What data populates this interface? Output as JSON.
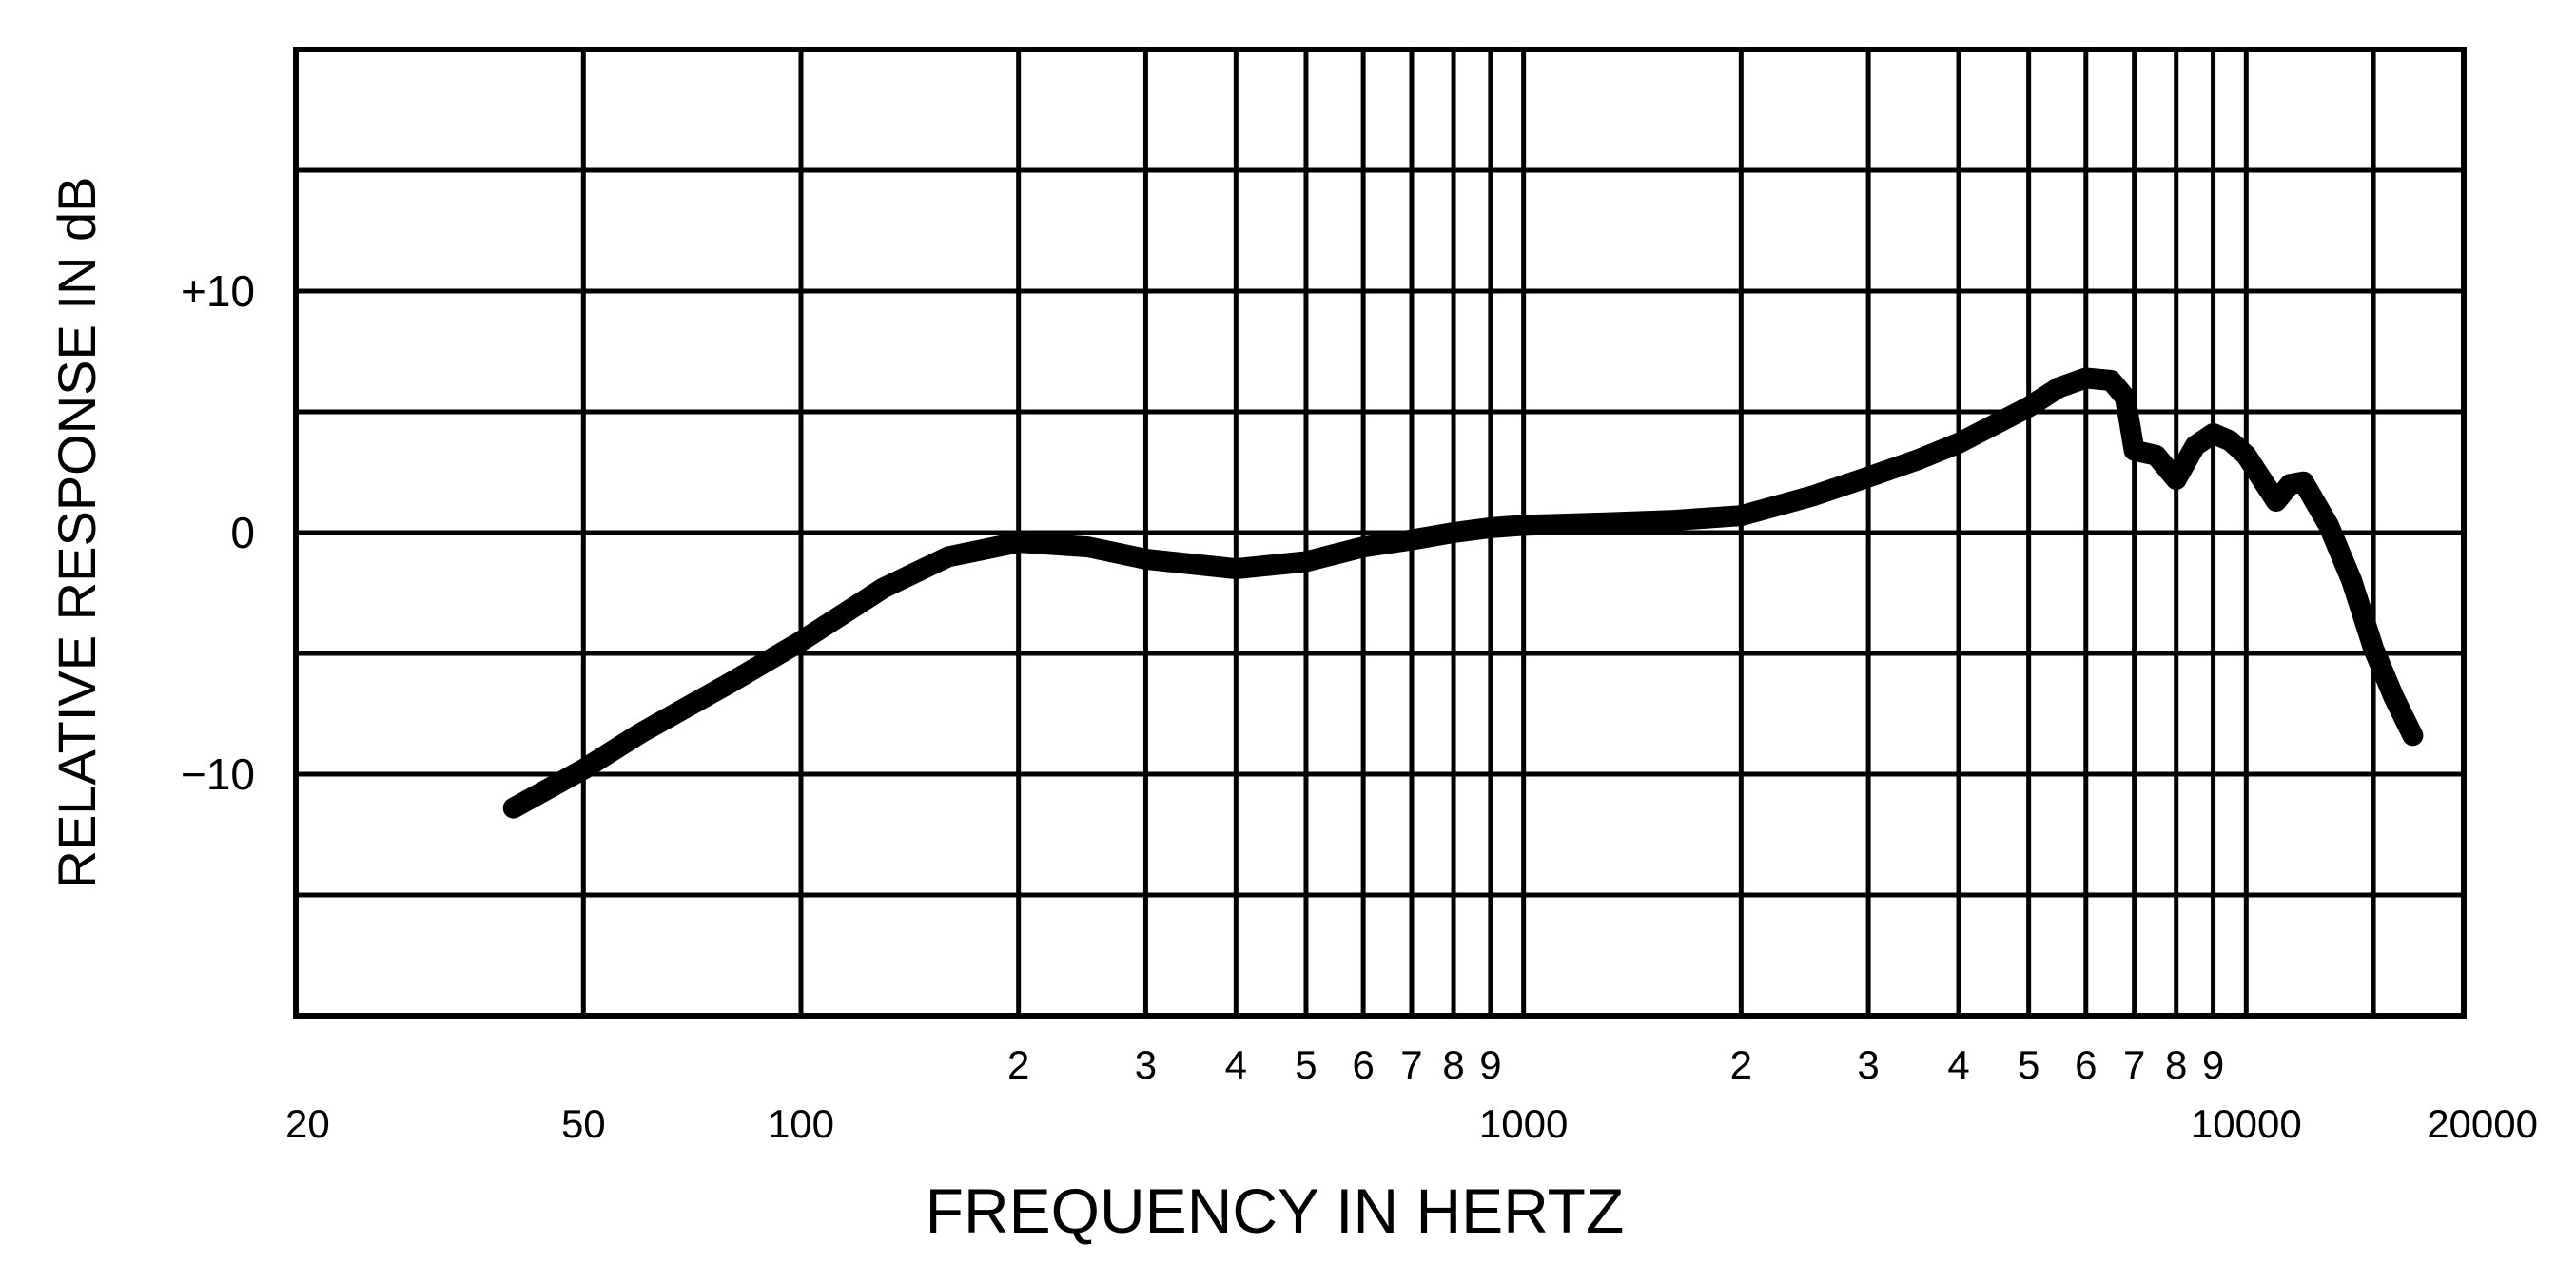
{
  "chart_data": {
    "type": "line",
    "title": "",
    "xlabel": "FREQUENCY IN HERTZ",
    "ylabel": "RELATIVE RESPONSE IN dB",
    "x_scale": "log",
    "xlim": [
      20,
      20000
    ],
    "ylim": [
      -20,
      20
    ],
    "grid": true,
    "x_major_tick_labels": [
      {
        "value": 20,
        "label": "20"
      },
      {
        "value": 50,
        "label": "50"
      },
      {
        "value": 100,
        "label": "100"
      },
      {
        "value": 1000,
        "label": "1000"
      },
      {
        "value": 10000,
        "label": "10000"
      },
      {
        "value": 20000,
        "label": "20000"
      }
    ],
    "x_minor_tick_labels": [
      {
        "value": 200,
        "label": "2"
      },
      {
        "value": 300,
        "label": "3"
      },
      {
        "value": 400,
        "label": "4"
      },
      {
        "value": 500,
        "label": "5"
      },
      {
        "value": 600,
        "label": "6"
      },
      {
        "value": 700,
        "label": "7"
      },
      {
        "value": 800,
        "label": "8"
      },
      {
        "value": 900,
        "label": "9"
      },
      {
        "value": 2000,
        "label": "2"
      },
      {
        "value": 3000,
        "label": "3"
      },
      {
        "value": 4000,
        "label": "4"
      },
      {
        "value": 5000,
        "label": "5"
      },
      {
        "value": 6000,
        "label": "6"
      },
      {
        "value": 7000,
        "label": "7"
      },
      {
        "value": 8000,
        "label": "8"
      },
      {
        "value": 9000,
        "label": "9"
      }
    ],
    "x_gridlines": [
      50,
      100,
      200,
      300,
      400,
      500,
      600,
      700,
      800,
      900,
      1000,
      2000,
      3000,
      4000,
      5000,
      6000,
      7000,
      8000,
      9000,
      10000,
      15000
    ],
    "y_gridlines": [
      -15,
      -10,
      -5,
      0,
      5,
      10,
      15
    ],
    "y_tick_labels": [
      {
        "value": 10,
        "label": "+10"
      },
      {
        "value": 0,
        "label": "0"
      },
      {
        "value": -10,
        "label": "−10"
      }
    ],
    "series": [
      {
        "x": [
          40,
          50,
          60,
          80,
          100,
          130,
          160,
          200,
          250,
          300,
          400,
          500,
          600,
          700,
          800,
          900,
          1000,
          1300,
          1600,
          2000,
          2500,
          3000,
          3500,
          4000,
          5000,
          5500,
          6000,
          6500,
          6800,
          7000,
          7500,
          8000,
          8500,
          9000,
          9500,
          10000,
          11000,
          11500,
          12000,
          13000,
          14000,
          15000,
          16000,
          17000
        ],
        "y": [
          -11.4,
          -9.8,
          -8.3,
          -6.2,
          -4.5,
          -2.3,
          -1.0,
          -0.4,
          -0.6,
          -1.1,
          -1.5,
          -1.2,
          -0.6,
          -0.3,
          0.0,
          0.2,
          0.3,
          0.4,
          0.5,
          0.7,
          1.5,
          2.3,
          3.0,
          3.7,
          5.2,
          6.0,
          6.4,
          6.3,
          5.6,
          3.4,
          3.2,
          2.2,
          3.6,
          4.1,
          3.8,
          3.2,
          1.3,
          2.0,
          2.1,
          0.3,
          -2.0,
          -4.8,
          -6.8,
          -8.4
        ]
      }
    ],
    "colors": {
      "line": "#000000",
      "background": "#ffffff"
    }
  }
}
